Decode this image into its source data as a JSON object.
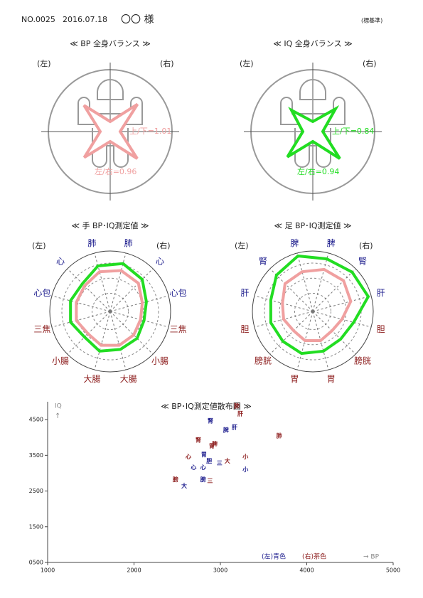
{
  "header": {
    "number": "NO.0025",
    "date": "2016.07.18",
    "name": "〇〇 様",
    "note": "(標基準)"
  },
  "chart_data": [
    {
      "type": "balance",
      "title": "≪ BP 全身バランス ≫",
      "side_labels": [
        "(左)",
        "(右)"
      ],
      "color": "#f0a0a0",
      "values": [
        1.01,
        0.96
      ],
      "value_labels": [
        "上/下=1.01",
        "左/右=0.96"
      ]
    },
    {
      "type": "balance",
      "title": "≪ IQ 全身バランス ≫",
      "side_labels": [
        "(左)",
        "(右)"
      ],
      "color": "#22dd22",
      "values": [
        0.84,
        0.94
      ],
      "value_labels": [
        "上/下=0.84",
        "左/右=0.94"
      ]
    },
    {
      "type": "radar",
      "title": "≪ 手 BP･IQ測定値 ≫",
      "side_labels": [
        "(左)",
        "(右)"
      ],
      "categories": [
        "肺",
        "心",
        "心包",
        "三焦",
        "小腸",
        "大腸",
        "大腸",
        "小腸",
        "三焦",
        "心包",
        "心",
        "肺"
      ],
      "category_colors": [
        "#1a1a8c",
        "#1a1a8c",
        "#1a1a8c",
        "#8b1a1a",
        "#8b1a1a",
        "#8b1a1a",
        "#8b1a1a",
        "#8b1a1a",
        "#8b1a1a",
        "#1a1a8c",
        "#1a1a8c",
        "#1a1a8c"
      ],
      "rlim": [
        0,
        100
      ],
      "series": [
        {
          "color": "#22dd22",
          "values": [
            82,
            75,
            62,
            58,
            63,
            65,
            68,
            60,
            68,
            68,
            65,
            78
          ]
        },
        {
          "color": "#f0a0a0",
          "values": [
            70,
            66,
            55,
            52,
            55,
            58,
            58,
            52,
            58,
            58,
            60,
            68
          ]
        }
      ]
    },
    {
      "type": "radar",
      "title": "≪ 足 BP･IQ測定値 ≫",
      "side_labels": [
        "(左)",
        "(右)"
      ],
      "categories": [
        "脾",
        "腎",
        "肝",
        "胆",
        "膀胱",
        "胃",
        "胃",
        "膀胱",
        "胆",
        "肝",
        "腎",
        "脾"
      ],
      "category_colors": [
        "#1a1a8c",
        "#1a1a8c",
        "#1a1a8c",
        "#8b1a1a",
        "#8b1a1a",
        "#8b1a1a",
        "#8b1a1a",
        "#8b1a1a",
        "#8b1a1a",
        "#1a1a8c",
        "#1a1a8c",
        "#1a1a8c"
      ],
      "rlim": [
        0,
        100
      ],
      "series": [
        {
          "color": "#22dd22",
          "values": [
            90,
            92,
            95,
            70,
            65,
            68,
            72,
            70,
            72,
            72,
            85,
            95
          ]
        },
        {
          "color": "#f0a0a0",
          "values": [
            72,
            72,
            65,
            50,
            45,
            50,
            50,
            45,
            50,
            52,
            65,
            68
          ]
        }
      ]
    },
    {
      "type": "scatter",
      "title": "≪ BP･IQ測定値散布図 ≫",
      "x_label": "→ BP",
      "y_label": "IQ",
      "y_arrow": "↑",
      "xlim": [
        1000,
        5000
      ],
      "xticks": [
        1000,
        2000,
        3000,
        4000,
        5000
      ],
      "ylim": [
        500,
        5000
      ],
      "yticks": [
        {
          "value": 500,
          "label": "0500"
        },
        1500,
        2500,
        3500,
        4500
      ],
      "series": [
        {
          "name": "(左)青色",
          "color": "#1a1a8c",
          "labels": [
            "腎",
            "脾",
            "肝",
            "胃",
            "胆",
            "三",
            "心",
            "心",
            "小",
            "膀",
            "大"
          ],
          "x": [
            2885,
            3065,
            3165,
            2810,
            2870,
            2990,
            2690,
            2800,
            3290,
            2800,
            2580
          ],
          "y": [
            4460,
            4200,
            4280,
            3520,
            3340,
            3280,
            3160,
            3160,
            3100,
            2820,
            2640
          ]
        },
        {
          "name": "(右)茶色",
          "color": "#8b1a1a",
          "labels": [
            "肺",
            "肝",
            "肺",
            "腎",
            "脾",
            "胃",
            "心",
            "小",
            "大",
            "膀",
            "三"
          ],
          "x": [
            3190,
            3230,
            3680,
            2745,
            2935,
            2900,
            2630,
            3290,
            3080,
            2480,
            2880
          ],
          "y": [
            4880,
            4660,
            4040,
            3920,
            3820,
            3760,
            3460,
            3460,
            3340,
            2820,
            2780
          ]
        }
      ]
    }
  ]
}
